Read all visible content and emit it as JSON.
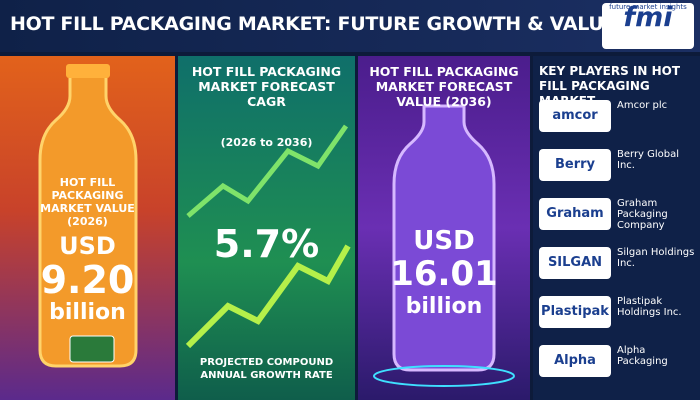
{
  "header": {
    "title": "HOT FILL PACKAGING MARKET: FUTURE GROWTH & VALUE",
    "logo": {
      "mark": "fmi",
      "text": "future market insights"
    }
  },
  "panels": [
    {
      "title": "HOT FILL PACKAGING MARKET VALUE (2026)",
      "currency": "USD",
      "value": "9.20",
      "unit": "billion"
    },
    {
      "title": "HOT FILL PACKAGING MARKET FORECAST CAGR",
      "period": "(2026 to 2036)",
      "value": "5.7%",
      "caption": "PROJECTED COMPOUND ANNUAL GROWTH RATE"
    },
    {
      "title": "HOT FILL PACKAGING MARKET FORECAST VALUE (2036)",
      "currency": "USD",
      "value": "16.01",
      "unit": "billion"
    },
    {
      "title": "KEY PLAYERS IN HOT FILL PACKAGING MARKET",
      "players": [
        {
          "logo": "amcor",
          "name": "Amcor plc"
        },
        {
          "logo": "Berry",
          "name": "Berry Global Inc."
        },
        {
          "logo": "Graham",
          "name": "Graham Packaging Company"
        },
        {
          "logo": "SILGAN",
          "name": "Silgan Holdings Inc."
        },
        {
          "logo": "Plastipak",
          "name": "Plastipak Holdings Inc."
        },
        {
          "logo": "Alpha",
          "name": "Alpha Packaging"
        }
      ]
    }
  ]
}
